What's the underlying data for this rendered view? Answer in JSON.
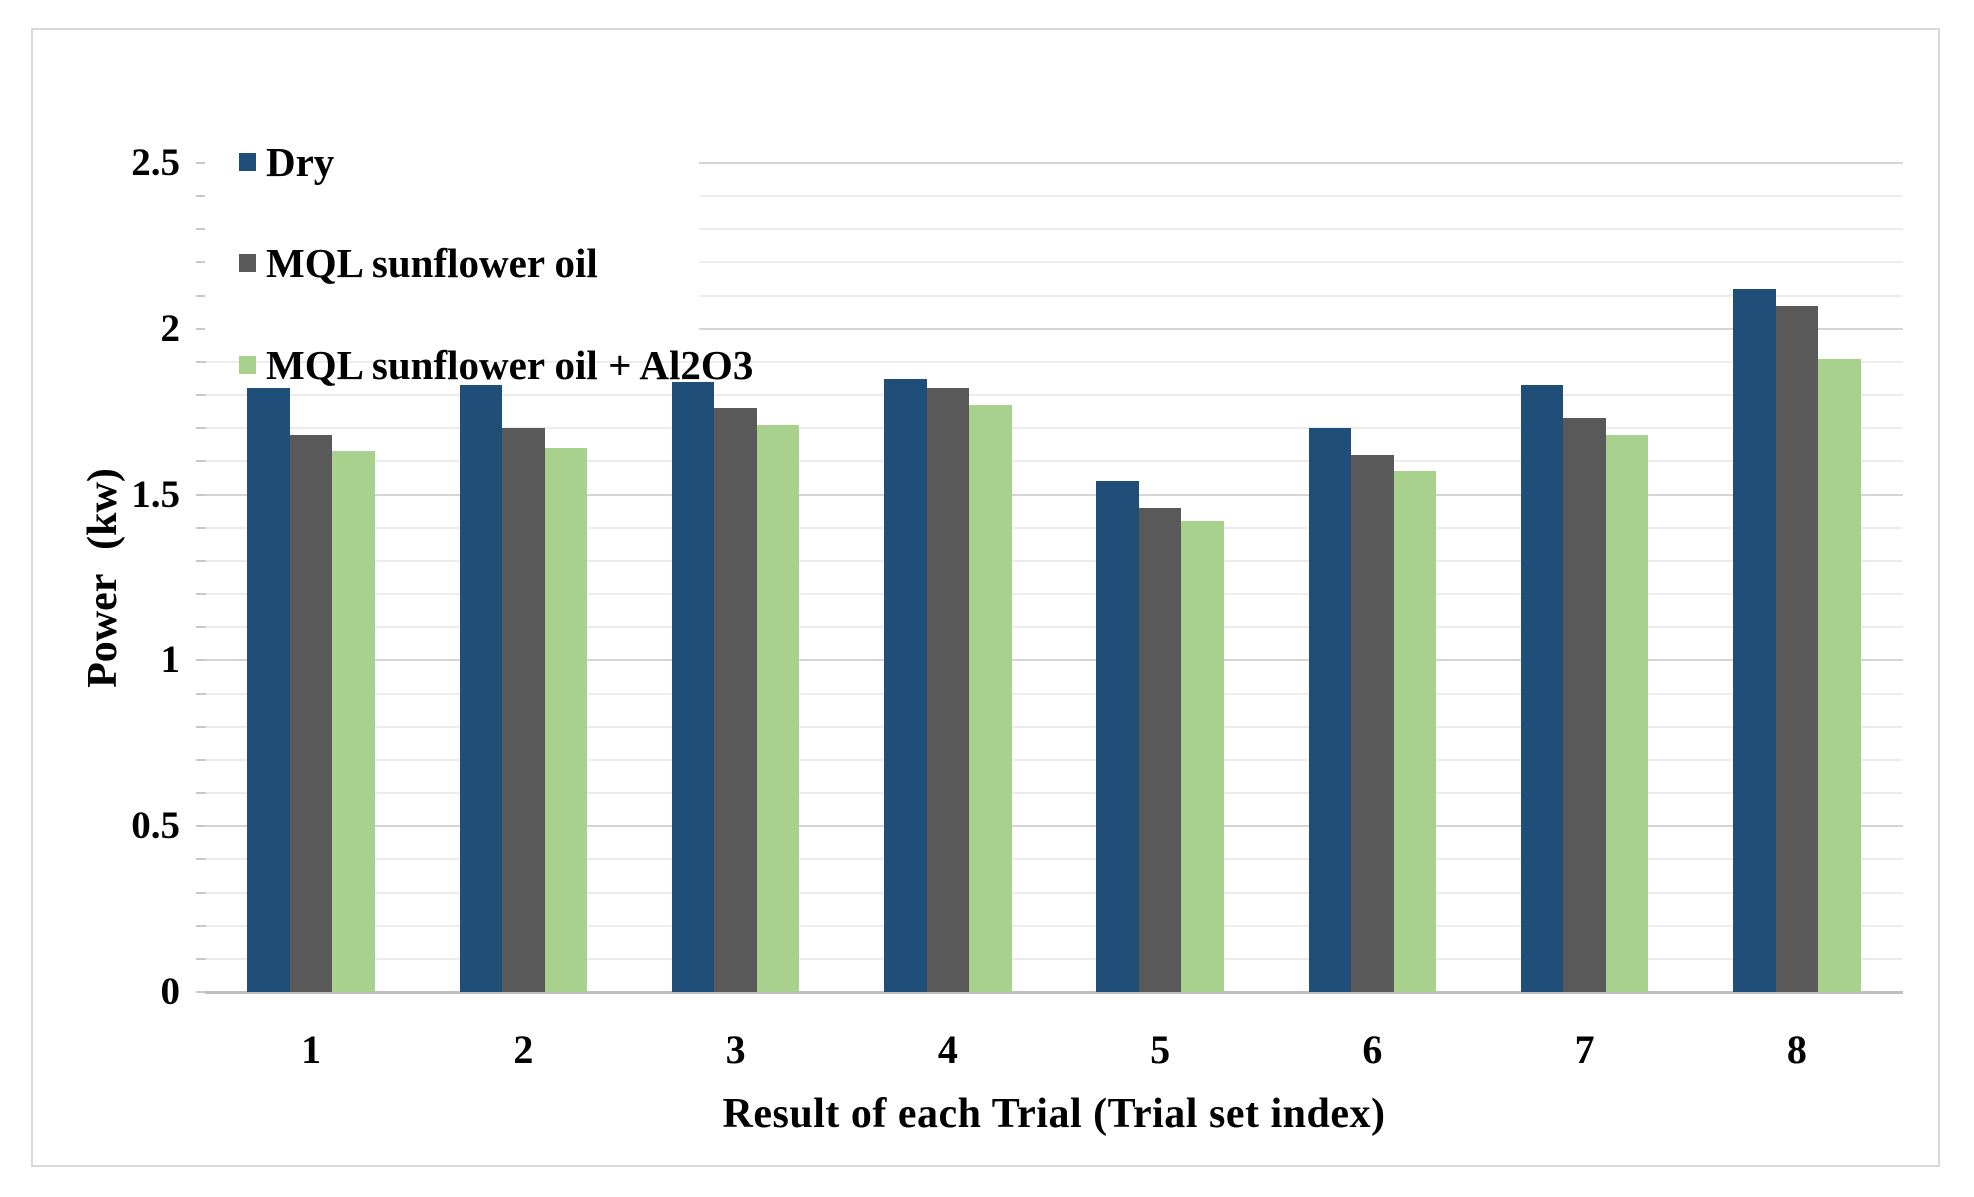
{
  "figure": {
    "background_color": "#FFFFFF",
    "frame_border_color": "#D9D9D9"
  },
  "colors": {
    "minor_gridline": "#ECECEC",
    "major_gridline": "#D5D5D5",
    "axis_baseline": "#BFBFBF",
    "tick_dash": "#C9C9C9",
    "text": "#000000"
  },
  "chart_data": {
    "type": "bar",
    "title": "",
    "xlabel": "Result of each Trial (Trial set index)",
    "ylabel": "Power (kw)",
    "categories": [
      "1",
      "2",
      "3",
      "4",
      "5",
      "6",
      "7",
      "8"
    ],
    "series": [
      {
        "name": "Dry",
        "color": "#1F4E79",
        "values": [
          1.82,
          1.83,
          1.84,
          1.85,
          1.54,
          1.7,
          1.83,
          2.12
        ]
      },
      {
        "name": "MQL sunflower oil",
        "color": "#595959",
        "values": [
          1.68,
          1.7,
          1.76,
          1.82,
          1.46,
          1.62,
          1.73,
          2.07
        ]
      },
      {
        "name": "MQL sunflower oil + Al2O3",
        "color": "#A9D18E",
        "values": [
          1.63,
          1.64,
          1.71,
          1.77,
          1.42,
          1.57,
          1.68,
          1.91
        ]
      }
    ],
    "ylim": [
      0,
      2.5
    ],
    "y_major_tick_labels": [
      "0",
      "0.5",
      "1",
      "1.5",
      "2",
      "2.5"
    ],
    "y_major_step": 0.5,
    "y_minor_step": 0.1,
    "grid": "horizontal minor and major gridlines",
    "legend_position": "top-left vertical list"
  }
}
